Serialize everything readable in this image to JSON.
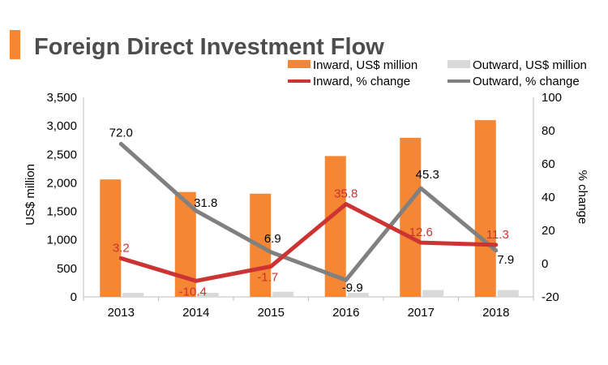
{
  "colors": {
    "accent": "#F58634",
    "inward_bar": "#F58634",
    "outward_bar": "#D9D9D9",
    "inward_line": "#CC3333",
    "outward_line": "#808080",
    "title_text": "#4D4D4D"
  },
  "chart_data": {
    "type": "bar",
    "title": "Foreign Direct Investment Flow",
    "categories": [
      "2013",
      "2014",
      "2015",
      "2016",
      "2017",
      "2018"
    ],
    "ylabel": "US$ million",
    "ylim": [
      0,
      3500
    ],
    "yticks": [
      "0",
      "500",
      "1,000",
      "1,500",
      "2,000",
      "2,500",
      "3,000",
      "3,500"
    ],
    "y2label": "% change",
    "y2lim": [
      -20,
      100
    ],
    "y2ticks": [
      "-20",
      "0",
      "20",
      "40",
      "60",
      "80",
      "100"
    ],
    "legend_position": "top-right",
    "grid": false,
    "series": [
      {
        "name": "Inward, US$ million",
        "type": "bar",
        "axis": "left",
        "values": [
          2060,
          1840,
          1810,
          2470,
          2790,
          3100
        ]
      },
      {
        "name": "Outward, US$ million",
        "type": "bar",
        "axis": "left",
        "values": [
          70,
          70,
          90,
          70,
          120,
          120
        ]
      },
      {
        "name": "Inward, % change",
        "type": "line",
        "axis": "right",
        "values": [
          3.2,
          -10.4,
          -1.7,
          35.8,
          12.6,
          11.3
        ],
        "labels": [
          "3.2",
          "-10.4",
          "-1.7",
          "35.8",
          "12.6",
          "11.3"
        ]
      },
      {
        "name": "Outward, % change",
        "type": "line",
        "axis": "right",
        "values": [
          72.0,
          31.8,
          6.9,
          -9.9,
          45.3,
          7.9
        ],
        "labels": [
          "72.0",
          "31.8",
          "6.9",
          "-9.9",
          "45.3",
          "7.9"
        ]
      }
    ]
  }
}
